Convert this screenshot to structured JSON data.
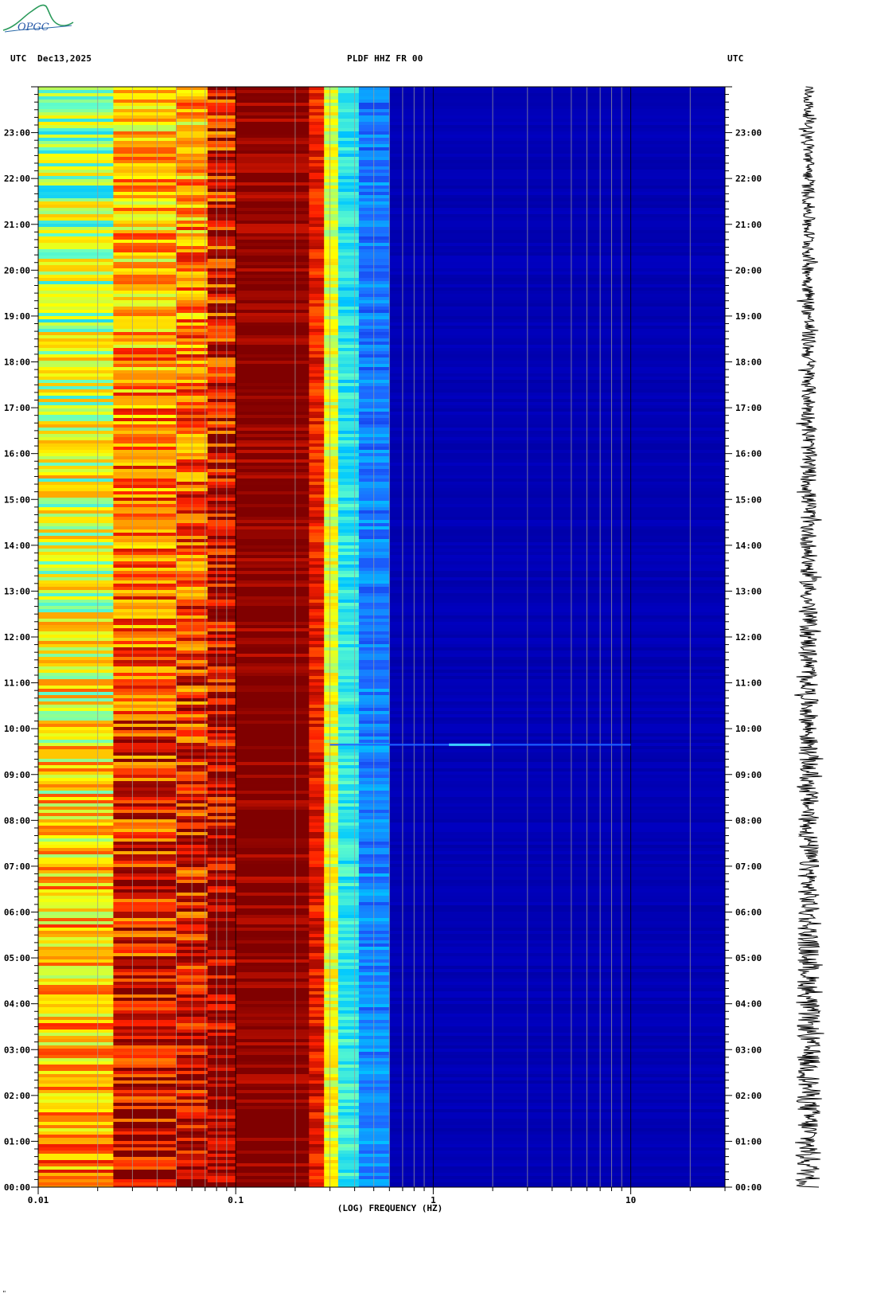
{
  "header": {
    "left_tz": "UTC",
    "date": "Dec13,2025",
    "station": "PLDF HHZ FR 00",
    "right_tz": "UTC"
  },
  "logo": {
    "text": "OPGC"
  },
  "footer_mark": "\"",
  "chart_data": {
    "type": "heatmap",
    "title": "PLDF HHZ FR 00",
    "xlabel": "(LOG) FREQUENCY (HZ)",
    "xscale": "log",
    "xlim": [
      0.01,
      30
    ],
    "x_tick_labels": [
      "0.01",
      "0.1",
      "1",
      "10"
    ],
    "y_tick_labels": [
      "00:00",
      "01:00",
      "02:00",
      "03:00",
      "04:00",
      "05:00",
      "06:00",
      "07:00",
      "08:00",
      "09:00",
      "10:00",
      "11:00",
      "12:00",
      "13:00",
      "14:00",
      "15:00",
      "16:00",
      "17:00",
      "18:00",
      "19:00",
      "20:00",
      "21:00",
      "22:00",
      "23:00"
    ],
    "ylim_hours": [
      0,
      24
    ],
    "colorscale": [
      "#00008b",
      "#0000c8",
      "#1e64ff",
      "#00c8ff",
      "#64ffc8",
      "#ffff00",
      "#ffa000",
      "#ff2000",
      "#800000"
    ],
    "bands": [
      {
        "f0": 0.01,
        "f1": 0.024,
        "level_start": 0.52,
        "level_end": 0.76
      },
      {
        "f0": 0.024,
        "f1": 0.05,
        "level_start": 0.68,
        "level_end": 0.95
      },
      {
        "f0": 0.05,
        "f1": 0.072,
        "level_start": 0.72,
        "level_end": 0.97
      },
      {
        "f0": 0.072,
        "f1": 0.1,
        "level_start": 0.88,
        "level_end": 1.0
      },
      {
        "f0": 0.1,
        "f1": 0.235,
        "level_start": 1.0,
        "level_end": 1.0
      },
      {
        "f0": 0.235,
        "f1": 0.28,
        "level_start": 0.88,
        "level_end": 0.9
      },
      {
        "f0": 0.28,
        "f1": 0.33,
        "level_start": 0.6,
        "level_end": 0.62
      },
      {
        "f0": 0.33,
        "f1": 0.42,
        "level_start": 0.42,
        "level_end": 0.45
      },
      {
        "f0": 0.42,
        "f1": 0.6,
        "level_start": 0.28,
        "level_end": 0.3
      },
      {
        "f0": 0.6,
        "f1": 30,
        "level_start": 0.08,
        "level_end": 0.08
      }
    ],
    "events": [
      {
        "time_hours": 9.65,
        "f0": 0.3,
        "f1": 10,
        "peak_hz": 1.5
      }
    ],
    "side_trace": {
      "type": "seismogram",
      "time_range_hours": [
        0,
        24
      ]
    }
  }
}
